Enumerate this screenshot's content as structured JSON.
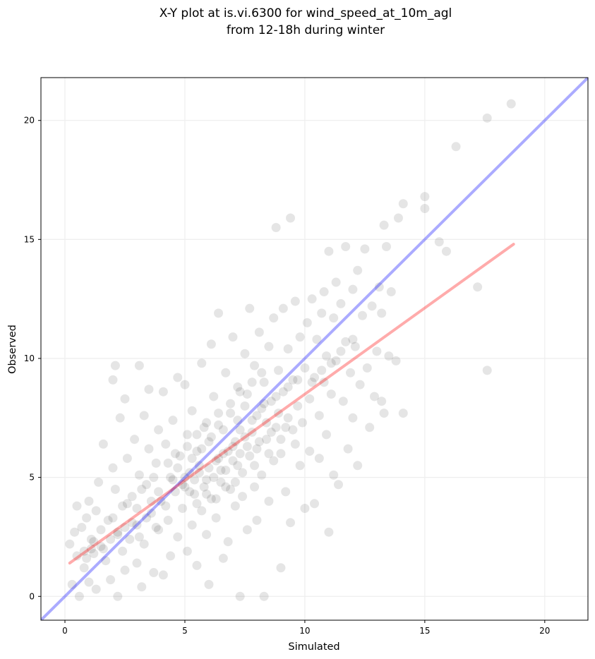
{
  "chart_data": {
    "type": "scatter",
    "title": "X-Y plot at is.vi.6300 for wind_speed_at_10m_agl",
    "subtitle": "from 12-18h during winter",
    "xlabel": "Simulated",
    "ylabel": "Observed",
    "xlim": [
      -1.0,
      21.8
    ],
    "ylim": [
      -1.0,
      21.8
    ],
    "xticks": [
      0,
      5,
      10,
      15,
      20
    ],
    "yticks": [
      0,
      5,
      10,
      15,
      20
    ],
    "grid": true,
    "colors": {
      "points": "#000000",
      "identity_line": "#0000ff",
      "fit_line": "#ff0000",
      "grid": "#eeeeee",
      "frame": "#000000"
    },
    "identity_line": {
      "x": [
        -1.0,
        21.8
      ],
      "y": [
        -1.0,
        21.8
      ]
    },
    "fit_line": {
      "x": [
        0.2,
        18.7
      ],
      "y": [
        1.4,
        14.8
      ]
    },
    "points": [
      [
        0.2,
        2.2
      ],
      [
        0.3,
        0.5
      ],
      [
        0.4,
        2.7
      ],
      [
        0.5,
        3.8
      ],
      [
        0.5,
        1.7
      ],
      [
        0.6,
        0.0
      ],
      [
        0.7,
        2.9
      ],
      [
        0.8,
        1.2
      ],
      [
        0.9,
        3.3
      ],
      [
        1.0,
        4.0
      ],
      [
        1.0,
        0.6
      ],
      [
        1.1,
        2.4
      ],
      [
        1.2,
        1.8
      ],
      [
        1.3,
        3.6
      ],
      [
        1.3,
        0.3
      ],
      [
        1.4,
        4.8
      ],
      [
        1.5,
        2.1
      ],
      [
        1.6,
        6.4
      ],
      [
        1.7,
        1.5
      ],
      [
        1.8,
        3.2
      ],
      [
        1.9,
        0.7
      ],
      [
        2.0,
        9.1
      ],
      [
        2.0,
        5.4
      ],
      [
        2.1,
        9.7
      ],
      [
        2.1,
        4.5
      ],
      [
        2.2,
        2.7
      ],
      [
        2.2,
        0.0
      ],
      [
        2.3,
        7.5
      ],
      [
        2.4,
        3.8
      ],
      [
        2.5,
        1.1
      ],
      [
        2.5,
        8.3
      ],
      [
        2.6,
        5.8
      ],
      [
        2.7,
        2.4
      ],
      [
        2.8,
        4.2
      ],
      [
        2.9,
        6.6
      ],
      [
        3.0,
        1.4
      ],
      [
        3.0,
        3.0
      ],
      [
        3.1,
        9.7
      ],
      [
        3.1,
        5.1
      ],
      [
        3.2,
        0.4
      ],
      [
        3.3,
        7.6
      ],
      [
        3.3,
        2.2
      ],
      [
        3.4,
        4.7
      ],
      [
        3.5,
        8.7
      ],
      [
        3.5,
        6.2
      ],
      [
        3.6,
        3.5
      ],
      [
        3.7,
        1.0
      ],
      [
        3.8,
        5.6
      ],
      [
        3.9,
        7.0
      ],
      [
        3.9,
        2.8
      ],
      [
        4.0,
        4.0
      ],
      [
        4.1,
        8.6
      ],
      [
        4.1,
        0.9
      ],
      [
        4.2,
        6.4
      ],
      [
        4.3,
        3.2
      ],
      [
        4.4,
        5.0
      ],
      [
        4.4,
        1.7
      ],
      [
        4.5,
        7.4
      ],
      [
        4.6,
        4.4
      ],
      [
        4.7,
        2.5
      ],
      [
        4.7,
        9.2
      ],
      [
        4.8,
        5.9
      ],
      [
        4.9,
        3.7
      ],
      [
        5.0,
        4.6
      ],
      [
        5.0,
        8.9
      ],
      [
        5.1,
        6.8
      ],
      [
        5.1,
        1.9
      ],
      [
        5.2,
        5.2
      ],
      [
        5.3,
        3.0
      ],
      [
        5.3,
        7.8
      ],
      [
        5.4,
        4.3
      ],
      [
        5.5,
        6.1
      ],
      [
        5.5,
        1.3
      ],
      [
        5.6,
        5.5
      ],
      [
        5.7,
        3.6
      ],
      [
        5.7,
        9.8
      ],
      [
        5.8,
        7.1
      ],
      [
        5.9,
        4.9
      ],
      [
        5.9,
        2.6
      ],
      [
        6.0,
        6.5
      ],
      [
        6.0,
        0.5
      ],
      [
        6.1,
        10.6
      ],
      [
        6.1,
        4.1
      ],
      [
        6.2,
        8.4
      ],
      [
        6.3,
        5.7
      ],
      [
        6.3,
        3.3
      ],
      [
        6.4,
        11.9
      ],
      [
        6.4,
        7.2
      ],
      [
        6.5,
        4.8
      ],
      [
        6.6,
        6.0
      ],
      [
        6.6,
        1.6
      ],
      [
        6.7,
        9.4
      ],
      [
        6.7,
        5.3
      ],
      [
        6.8,
        2.3
      ],
      [
        6.9,
        7.7
      ],
      [
        6.9,
        4.5
      ],
      [
        7.0,
        10.9
      ],
      [
        7.0,
        6.3
      ],
      [
        7.1,
        3.8
      ],
      [
        7.2,
        8.8
      ],
      [
        7.2,
        5.5
      ],
      [
        7.3,
        0.0
      ],
      [
        7.3,
        7.0
      ],
      [
        7.4,
        4.2
      ],
      [
        7.5,
        10.2
      ],
      [
        7.5,
        6.7
      ],
      [
        7.6,
        2.8
      ],
      [
        7.6,
        8.5
      ],
      [
        7.7,
        5.9
      ],
      [
        7.7,
        12.1
      ],
      [
        7.8,
        7.4
      ],
      [
        7.9,
        4.6
      ],
      [
        7.9,
        9.7
      ],
      [
        8.0,
        6.2
      ],
      [
        8.0,
        3.2
      ],
      [
        8.1,
        11.1
      ],
      [
        8.2,
        7.9
      ],
      [
        8.2,
        5.1
      ],
      [
        8.3,
        9.0
      ],
      [
        8.3,
        0.0
      ],
      [
        8.4,
        6.6
      ],
      [
        8.5,
        10.5
      ],
      [
        8.5,
        4.0
      ],
      [
        8.6,
        8.2
      ],
      [
        8.7,
        5.7
      ],
      [
        8.7,
        11.7
      ],
      [
        8.8,
        7.1
      ],
      [
        8.8,
        15.5
      ],
      [
        8.9,
        9.5
      ],
      [
        9.0,
        6.0
      ],
      [
        9.0,
        1.2
      ],
      [
        9.1,
        8.6
      ],
      [
        9.1,
        12.1
      ],
      [
        9.2,
        4.4
      ],
      [
        9.3,
        10.4
      ],
      [
        9.3,
        7.5
      ],
      [
        9.4,
        15.9
      ],
      [
        9.4,
        3.1
      ],
      [
        9.5,
        9.1
      ],
      [
        9.6,
        6.4
      ],
      [
        9.6,
        12.4
      ],
      [
        9.7,
        8.0
      ],
      [
        9.8,
        5.5
      ],
      [
        9.8,
        10.9
      ],
      [
        9.9,
        7.3
      ],
      [
        10.0,
        9.6
      ],
      [
        10.0,
        3.7
      ],
      [
        10.1,
        11.5
      ],
      [
        10.2,
        8.3
      ],
      [
        10.2,
        6.1
      ],
      [
        10.3,
        12.5
      ],
      [
        10.4,
        9.2
      ],
      [
        10.4,
        3.9
      ],
      [
        10.5,
        10.8
      ],
      [
        10.6,
        7.6
      ],
      [
        10.6,
        5.8
      ],
      [
        10.7,
        11.9
      ],
      [
        10.8,
        9.0
      ],
      [
        10.8,
        12.8
      ],
      [
        10.9,
        10.1
      ],
      [
        10.9,
        6.8
      ],
      [
        11.0,
        14.5
      ],
      [
        11.0,
        2.7
      ],
      [
        11.1,
        8.5
      ],
      [
        11.2,
        11.7
      ],
      [
        11.2,
        5.1
      ],
      [
        11.3,
        13.2
      ],
      [
        11.3,
        9.9
      ],
      [
        11.4,
        4.7
      ],
      [
        11.5,
        12.3
      ],
      [
        11.6,
        8.2
      ],
      [
        11.7,
        10.7
      ],
      [
        11.7,
        14.7
      ],
      [
        11.8,
        6.2
      ],
      [
        11.9,
        9.4
      ],
      [
        12.0,
        12.9
      ],
      [
        12.0,
        7.5
      ],
      [
        12.1,
        10.5
      ],
      [
        12.2,
        13.7
      ],
      [
        12.2,
        5.5
      ],
      [
        12.3,
        8.9
      ],
      [
        12.4,
        11.8
      ],
      [
        12.5,
        14.6
      ],
      [
        12.6,
        9.6
      ],
      [
        12.7,
        7.1
      ],
      [
        12.8,
        12.2
      ],
      [
        12.9,
        8.4
      ],
      [
        13.0,
        10.3
      ],
      [
        13.1,
        13.0
      ],
      [
        13.2,
        11.9
      ],
      [
        13.2,
        8.2
      ],
      [
        13.3,
        15.6
      ],
      [
        13.3,
        7.7
      ],
      [
        13.4,
        14.7
      ],
      [
        13.5,
        10.1
      ],
      [
        13.6,
        12.8
      ],
      [
        13.8,
        9.9
      ],
      [
        13.9,
        15.9
      ],
      [
        14.1,
        16.5
      ],
      [
        14.1,
        7.7
      ],
      [
        15.0,
        16.8
      ],
      [
        15.0,
        16.3
      ],
      [
        15.6,
        14.9
      ],
      [
        15.9,
        14.5
      ],
      [
        16.3,
        18.9
      ],
      [
        17.2,
        13.0
      ],
      [
        17.6,
        20.1
      ],
      [
        17.6,
        9.5
      ],
      [
        18.6,
        20.7
      ],
      [
        4.9,
        4.7
      ],
      [
        5.0,
        5.0
      ],
      [
        5.2,
        4.4
      ],
      [
        5.4,
        4.9
      ],
      [
        5.6,
        5.2
      ],
      [
        5.8,
        4.6
      ],
      [
        6.0,
        5.4
      ],
      [
        6.2,
        5.0
      ],
      [
        6.4,
        5.8
      ],
      [
        6.5,
        5.3
      ],
      [
        6.8,
        6.1
      ],
      [
        7.0,
        5.7
      ],
      [
        7.1,
        6.5
      ],
      [
        7.3,
        6.0
      ],
      [
        7.6,
        6.3
      ],
      [
        7.8,
        6.9
      ],
      [
        8.1,
        6.5
      ],
      [
        8.4,
        7.3
      ],
      [
        8.6,
        6.9
      ],
      [
        8.9,
        7.7
      ],
      [
        9.2,
        7.1
      ],
      [
        4.5,
        4.9
      ],
      [
        4.7,
        5.4
      ],
      [
        3.9,
        4.4
      ],
      [
        4.2,
        3.8
      ],
      [
        3.6,
        4.0
      ],
      [
        3.4,
        3.3
      ],
      [
        3.0,
        3.7
      ],
      [
        2.8,
        3.1
      ],
      [
        2.5,
        2.9
      ],
      [
        2.2,
        2.6
      ],
      [
        1.9,
        2.4
      ],
      [
        1.6,
        2.0
      ],
      [
        1.2,
        2.3
      ],
      [
        0.9,
        1.6
      ],
      [
        5.3,
        5.8
      ],
      [
        5.7,
        6.2
      ],
      [
        6.1,
        6.7
      ],
      [
        6.6,
        7.0
      ],
      [
        7.2,
        7.4
      ],
      [
        7.5,
        8.0
      ],
      [
        8.0,
        7.6
      ],
      [
        8.3,
        8.1
      ],
      [
        8.8,
        8.4
      ],
      [
        9.3,
        8.8
      ],
      [
        9.7,
        9.1
      ],
      [
        10.3,
        9.0
      ],
      [
        10.7,
        9.5
      ],
      [
        11.1,
        9.8
      ],
      [
        11.5,
        10.3
      ],
      [
        12.0,
        10.8
      ],
      [
        5.5,
        3.9
      ],
      [
        5.9,
        4.3
      ],
      [
        6.3,
        4.1
      ],
      [
        6.7,
        4.6
      ],
      [
        7.1,
        4.8
      ],
      [
        7.4,
        5.2
      ],
      [
        7.9,
        5.5
      ],
      [
        8.5,
        6.0
      ],
      [
        9.0,
        6.6
      ],
      [
        9.5,
        7.0
      ],
      [
        4.3,
        5.6
      ],
      [
        4.6,
        6.0
      ],
      [
        5.1,
        6.3
      ],
      [
        5.5,
        6.8
      ],
      [
        5.9,
        7.3
      ],
      [
        6.4,
        7.7
      ],
      [
        6.9,
        8.1
      ],
      [
        7.3,
        8.6
      ],
      [
        7.8,
        9.0
      ],
      [
        8.2,
        9.4
      ],
      [
        3.2,
        4.5
      ],
      [
        3.7,
        5.0
      ],
      [
        2.6,
        3.9
      ],
      [
        2.0,
        3.3
      ],
      [
        1.5,
        2.8
      ],
      [
        1.1,
        2.0
      ],
      [
        0.8,
        1.9
      ],
      [
        2.4,
        1.9
      ],
      [
        3.1,
        2.5
      ],
      [
        3.8,
        2.9
      ]
    ]
  }
}
